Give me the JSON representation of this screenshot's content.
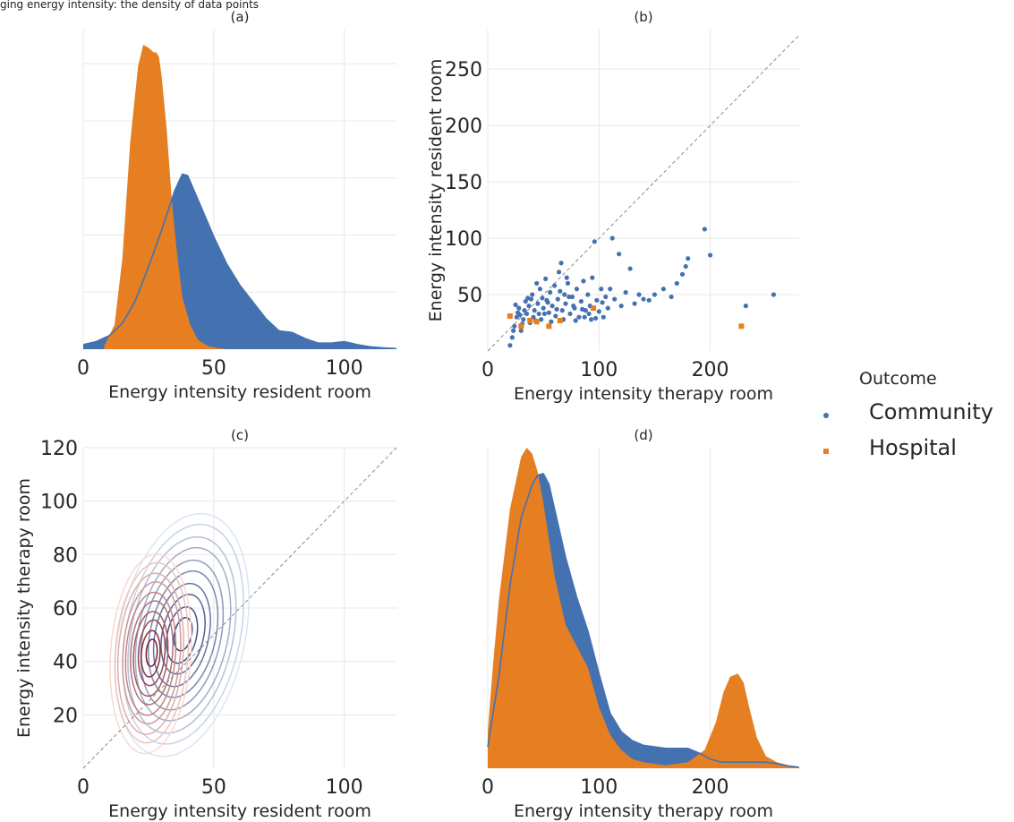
{
  "caption": "ging energy intensity: the density of data points",
  "colors": {
    "community": "#4472b1",
    "hospital": "#e67e22",
    "grid": "#e8e8e8",
    "diagonal": "#8a8a8a"
  },
  "legend": {
    "title": "Outcome",
    "items": [
      {
        "label": "Community",
        "marker": "circle",
        "color": "#4472b1"
      },
      {
        "label": "Hospital",
        "marker": "square",
        "color": "#e67e22"
      }
    ]
  },
  "chart_data": [
    {
      "panel": "(a)",
      "type": "area",
      "xlabel": "Energy intensity resident room",
      "ylabel": "",
      "xlim": [
        0,
        120
      ],
      "ylim": [
        0,
        1.05
      ],
      "xticks": [
        0,
        50,
        100
      ],
      "xtick_labels": [
        "0",
        "50",
        "100"
      ],
      "yticks": [],
      "ygrid": [
        0.1875,
        0.375,
        0.5625,
        0.75,
        0.9375
      ],
      "series": [
        {
          "name": "Community",
          "x": [
            0,
            5,
            10,
            15,
            20,
            25,
            30,
            35,
            38,
            40,
            45,
            50,
            55,
            60,
            65,
            70,
            75,
            80,
            85,
            90,
            95,
            100,
            105,
            110,
            115,
            120
          ],
          "y": [
            0.015,
            0.025,
            0.045,
            0.085,
            0.16,
            0.27,
            0.39,
            0.52,
            0.575,
            0.57,
            0.47,
            0.37,
            0.28,
            0.21,
            0.155,
            0.1,
            0.06,
            0.055,
            0.035,
            0.02,
            0.02,
            0.025,
            0.015,
            0.008,
            0.004,
            0.002
          ]
        },
        {
          "name": "Hospital",
          "x": [
            8,
            12,
            15,
            18,
            21,
            23,
            25,
            27,
            28,
            29,
            30,
            32,
            34,
            36,
            38,
            41,
            44,
            48,
            52,
            55
          ],
          "y": [
            0.01,
            0.08,
            0.3,
            0.68,
            0.93,
            1.0,
            0.99,
            0.975,
            0.975,
            0.96,
            0.9,
            0.72,
            0.48,
            0.31,
            0.17,
            0.08,
            0.03,
            0.01,
            0.003,
            0.0
          ]
        }
      ]
    },
    {
      "panel": "(b)",
      "type": "scatter",
      "xlabel": "Energy intensity therapy room",
      "ylabel": "Energy intensity resident room",
      "xlim": [
        0,
        280
      ],
      "ylim": [
        0,
        285
      ],
      "xticks": [
        0,
        100,
        200
      ],
      "xtick_labels": [
        "0",
        "100",
        "200"
      ],
      "yticks": [
        50,
        100,
        150,
        200,
        250
      ],
      "ytick_labels": [
        "50",
        "100",
        "150",
        "200",
        "250"
      ],
      "diagonal": true,
      "series": [
        {
          "name": "Community",
          "marker": "circle",
          "points": [
            [
              20,
              5
            ],
            [
              22,
              12
            ],
            [
              24,
              22
            ],
            [
              26,
              30
            ],
            [
              28,
              38
            ],
            [
              30,
              18
            ],
            [
              32,
              28
            ],
            [
              34,
              44
            ],
            [
              35,
              33
            ],
            [
              37,
              40
            ],
            [
              38,
              25
            ],
            [
              40,
              50
            ],
            [
              41,
              30
            ],
            [
              42,
              36
            ],
            [
              44,
              60
            ],
            [
              45,
              42
            ],
            [
              46,
              33
            ],
            [
              47,
              55
            ],
            [
              48,
              28
            ],
            [
              49,
              47
            ],
            [
              50,
              38
            ],
            [
              52,
              64
            ],
            [
              53,
              45
            ],
            [
              55,
              34
            ],
            [
              56,
              52
            ],
            [
              58,
              40
            ],
            [
              60,
              58
            ],
            [
              61,
              31
            ],
            [
              63,
              46
            ],
            [
              64,
              70
            ],
            [
              66,
              78
            ],
            [
              67,
              36
            ],
            [
              69,
              50
            ],
            [
              70,
              42
            ],
            [
              72,
              60
            ],
            [
              74,
              33
            ],
            [
              76,
              48
            ],
            [
              78,
              38
            ],
            [
              80,
              55
            ],
            [
              82,
              30
            ],
            [
              84,
              44
            ],
            [
              86,
              62
            ],
            [
              88,
              36
            ],
            [
              90,
              50
            ],
            [
              92,
              40
            ],
            [
              94,
              65
            ],
            [
              96,
              97
            ],
            [
              98,
              45
            ],
            [
              100,
              35
            ],
            [
              102,
              55
            ],
            [
              104,
              30
            ],
            [
              106,
              48
            ],
            [
              108,
              38
            ],
            [
              110,
              55
            ],
            [
              112,
              100
            ],
            [
              114,
              46
            ],
            [
              118,
              86
            ],
            [
              120,
              40
            ],
            [
              124,
              52
            ],
            [
              128,
              73
            ],
            [
              132,
              42
            ],
            [
              136,
              50
            ],
            [
              140,
              46
            ],
            [
              145,
              45
            ],
            [
              150,
              50
            ],
            [
              158,
              55
            ],
            [
              165,
              48
            ],
            [
              170,
              60
            ],
            [
              175,
              68
            ],
            [
              178,
              75
            ],
            [
              180,
              82
            ],
            [
              195,
              108
            ],
            [
              200,
              85
            ],
            [
              232,
              40
            ],
            [
              257,
              50
            ],
            [
              27,
              34
            ],
            [
              31,
              24
            ],
            [
              36,
              47
            ],
            [
              43,
              27
            ],
            [
              51,
              33
            ],
            [
              57,
              26
            ],
            [
              62,
              37
            ],
            [
              68,
              28
            ],
            [
              73,
              48
            ],
            [
              79,
              27
            ],
            [
              87,
              30
            ],
            [
              91,
              33
            ],
            [
              97,
              29
            ],
            [
              103,
              43
            ],
            [
              23,
              18
            ],
            [
              25,
              41
            ],
            [
              29,
              32
            ],
            [
              33,
              36
            ],
            [
              39,
              46
            ],
            [
              54,
              43
            ],
            [
              65,
              53
            ],
            [
              71,
              65
            ],
            [
              77,
              40
            ],
            [
              85,
              37
            ],
            [
              93,
              28
            ]
          ]
        },
        {
          "name": "Hospital",
          "marker": "square",
          "points": [
            [
              20,
              31
            ],
            [
              30,
              22
            ],
            [
              38,
              27
            ],
            [
              44,
              26
            ],
            [
              55,
              22
            ],
            [
              65,
              27
            ],
            [
              95,
              38
            ],
            [
              228,
              22
            ]
          ]
        }
      ]
    },
    {
      "panel": "(c)",
      "type": "contour",
      "xlabel": "Energy intensity resident room",
      "ylabel": "Energy intensity therapy room",
      "xlim": [
        0,
        120
      ],
      "ylim": [
        0,
        120
      ],
      "xticks": [
        0,
        50,
        100
      ],
      "xtick_labels": [
        "0",
        "50",
        "100"
      ],
      "yticks": [
        20,
        40,
        60,
        80,
        100,
        120
      ],
      "ytick_labels": [
        "20",
        "40",
        "60",
        "80",
        "100",
        "120"
      ],
      "diagonal": true,
      "series": [
        {
          "name": "Community",
          "colormap": "Blues",
          "center": [
            38,
            50
          ],
          "sx": 11,
          "sy": 21,
          "levels": 10
        },
        {
          "name": "Hospital",
          "colormap": "Reds",
          "center": [
            26,
            43
          ],
          "sx": 7,
          "sy": 17,
          "levels": 10
        }
      ]
    },
    {
      "panel": "(d)",
      "type": "area",
      "xlabel": "Energy intensity therapy room",
      "ylabel": "",
      "xlim": [
        0,
        280
      ],
      "ylim": [
        0,
        1.05
      ],
      "xticks": [
        0,
        100,
        200
      ],
      "xtick_labels": [
        "0",
        "100",
        "200"
      ],
      "yticks": [],
      "series": [
        {
          "name": "Community",
          "x": [
            0,
            10,
            20,
            30,
            40,
            45,
            50,
            55,
            60,
            70,
            80,
            90,
            100,
            110,
            120,
            130,
            140,
            150,
            160,
            170,
            180,
            190,
            200,
            210,
            220,
            230,
            240,
            250,
            260,
            270,
            280
          ],
          "y": [
            0.07,
            0.3,
            0.6,
            0.82,
            0.93,
            0.96,
            0.965,
            0.93,
            0.85,
            0.69,
            0.56,
            0.45,
            0.31,
            0.18,
            0.12,
            0.09,
            0.075,
            0.07,
            0.065,
            0.065,
            0.065,
            0.05,
            0.03,
            0.02,
            0.02,
            0.02,
            0.02,
            0.02,
            0.015,
            0.008,
            0.003
          ]
        },
        {
          "name": "Hospital",
          "x": [
            0,
            5,
            10,
            20,
            30,
            35,
            40,
            45,
            50,
            55,
            60,
            70,
            80,
            90,
            100,
            110,
            120,
            130,
            140,
            160,
            180,
            195,
            205,
            212,
            218,
            225,
            230,
            235,
            242,
            250,
            260,
            270,
            280
          ],
          "y": [
            0.12,
            0.35,
            0.55,
            0.85,
            1.02,
            1.05,
            1.03,
            0.97,
            0.87,
            0.75,
            0.63,
            0.47,
            0.4,
            0.33,
            0.2,
            0.11,
            0.06,
            0.03,
            0.02,
            0.01,
            0.02,
            0.06,
            0.15,
            0.25,
            0.3,
            0.31,
            0.28,
            0.2,
            0.1,
            0.04,
            0.02,
            0.01,
            0.005
          ]
        }
      ]
    }
  ]
}
